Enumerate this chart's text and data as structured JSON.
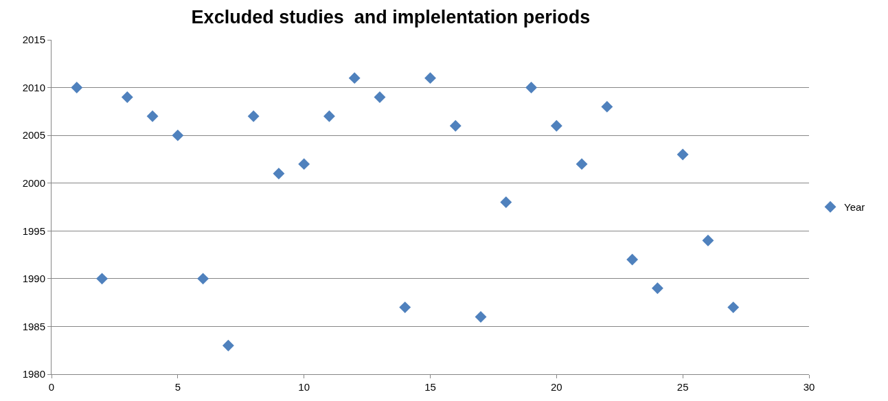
{
  "chart_data": {
    "type": "scatter",
    "title": "Excluded studies  and implelentation periods",
    "x": [
      1,
      2,
      3,
      4,
      5,
      6,
      7,
      8,
      9,
      10,
      11,
      12,
      13,
      14,
      15,
      16,
      17,
      18,
      19,
      20,
      21,
      22,
      23,
      24,
      25,
      26,
      27
    ],
    "series": [
      {
        "name": "Year",
        "color": "#4f81bd",
        "values": [
          2010,
          1990,
          2009,
          2007,
          2005,
          1990,
          1983,
          2007,
          2001,
          2002,
          2007,
          2011,
          2009,
          1987,
          2011,
          2006,
          1986,
          1998,
          2010,
          2006,
          2002,
          2008,
          1992,
          1989,
          2003,
          1994,
          1987
        ]
      }
    ],
    "xlim": [
      0,
      30
    ],
    "xticks": [
      0,
      5,
      10,
      15,
      20,
      25,
      30
    ],
    "ylim": [
      1980,
      2015
    ],
    "yticks": [
      1980,
      1985,
      1990,
      1995,
      2000,
      2005,
      2010,
      2015
    ],
    "grid": "y",
    "legend": "right",
    "marker": "diamond"
  }
}
